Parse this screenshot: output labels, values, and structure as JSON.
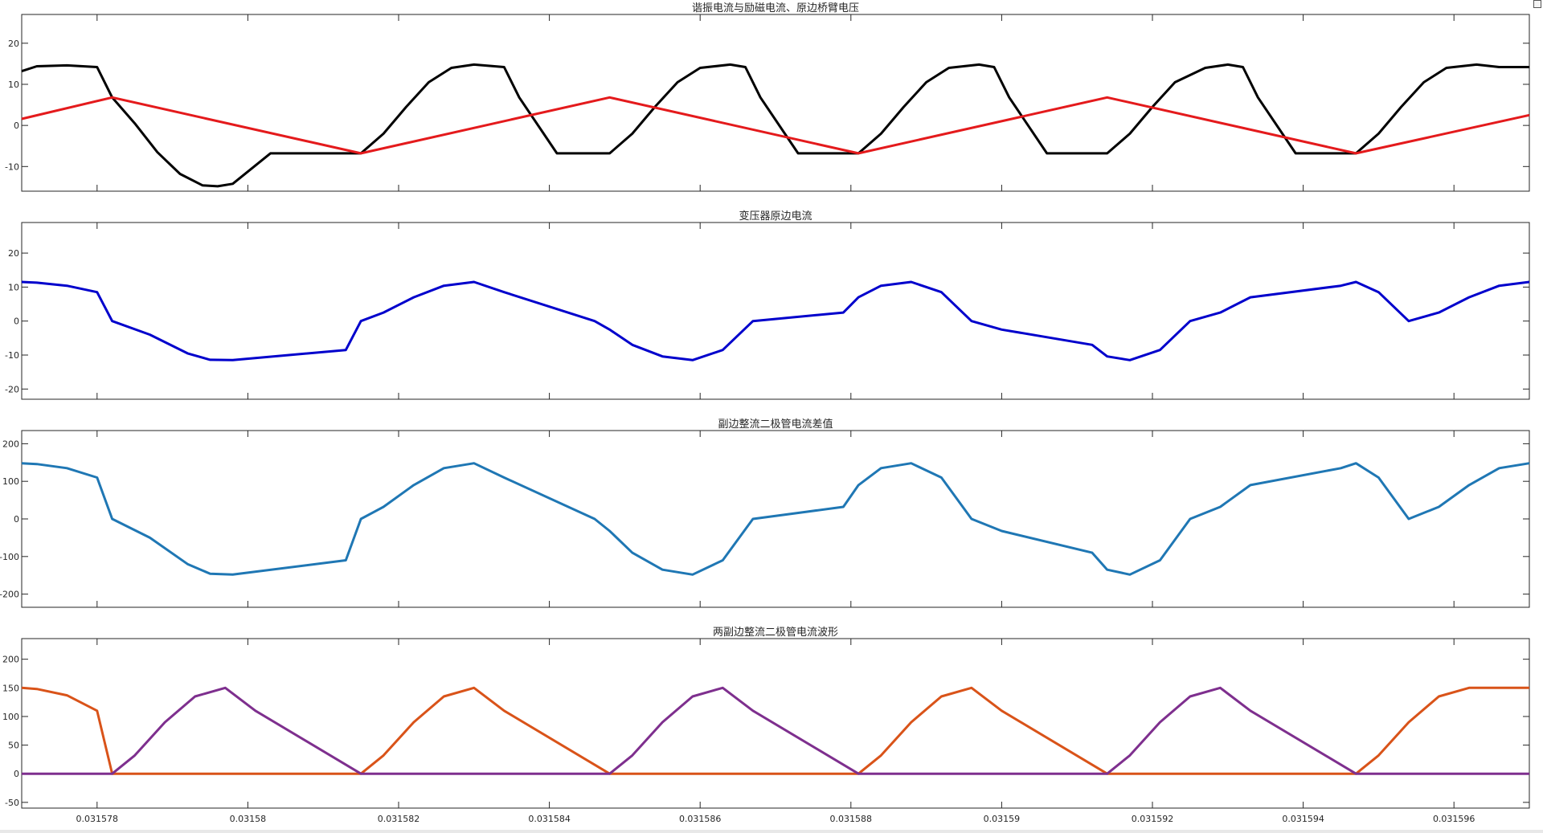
{
  "figure": {
    "x_ticks": [
      0.031578,
      0.03158,
      0.031582,
      0.031584,
      0.031586,
      0.031588,
      0.03159,
      0.031592,
      0.031594,
      0.031596
    ],
    "x_tick_labels": [
      "0.031578",
      "0.03158",
      "0.031582",
      "0.031584",
      "0.031586",
      "0.031588",
      "0.03159",
      "0.031592",
      "0.031594",
      "0.031596"
    ]
  },
  "chart_data": [
    {
      "type": "line",
      "title": "谐振电流与励磁电流、原边桥臂电压",
      "xlabel": "",
      "ylabel": "",
      "xlim": [
        0.031577,
        0.031597
      ],
      "ylim": [
        -16,
        27
      ],
      "y_ticks": [
        -10,
        0,
        10,
        20
      ],
      "y_tick_labels": [
        "-10",
        "0",
        "10",
        "20"
      ],
      "grid": false,
      "series": [
        {
          "color": "#000000",
          "x": [
            0.031577,
            0.0315772,
            0.0315776,
            0.031578,
            0.0315782,
            0.0315785,
            0.0315788,
            0.0315791,
            0.0315794,
            0.0315796,
            0.0315798,
            0.0315803,
            0.0315815,
            0.0315818,
            0.0315821,
            0.0315824,
            0.0315827,
            0.031583,
            0.0315834,
            0.0315836,
            0.0315841,
            0.0315848,
            0.0315851,
            0.0315854,
            0.0315857,
            0.031586,
            0.0315864,
            0.0315866,
            0.0315868,
            0.0315873,
            0.0315881,
            0.0315884,
            0.0315887,
            0.031589,
            0.0315893,
            0.0315897,
            0.0315899,
            0.0315901,
            0.0315906,
            0.0315914,
            0.0315917,
            0.031592,
            0.0315923,
            0.0315927,
            0.031593,
            0.0315932,
            0.0315934,
            0.0315939,
            0.0315947,
            0.031595,
            0.0315953,
            0.0315956,
            0.0315959,
            0.0315963,
            0.0315966,
            0.031597
          ],
          "y": [
            13.2,
            14.4,
            14.6,
            14.2,
            6.8,
            0.5,
            -6.5,
            -11.8,
            -14.6,
            -14.8,
            -14.2,
            -6.8,
            -6.8,
            -2.0,
            4.5,
            10.5,
            14.0,
            14.8,
            14.2,
            6.8,
            -6.8,
            -6.8,
            -2.0,
            4.5,
            10.5,
            14.0,
            14.8,
            14.2,
            6.8,
            -6.8,
            -6.8,
            -2.0,
            4.5,
            10.5,
            14.0,
            14.8,
            14.2,
            6.8,
            -6.8,
            -6.8,
            -2.0,
            4.5,
            10.5,
            14.0,
            14.8,
            14.2,
            6.8,
            -6.8,
            -6.8,
            -2.0,
            4.5,
            10.5,
            14.0,
            14.8,
            14.2,
            14.2
          ]
        },
        {
          "color": "#e41a1c",
          "x": [
            0.031577,
            0.0315782,
            0.0315815,
            0.0315848,
            0.0315881,
            0.0315914,
            0.0315947,
            0.031597
          ],
          "y": [
            1.6,
            6.8,
            -6.8,
            6.8,
            -6.8,
            6.8,
            -6.8,
            2.5
          ]
        }
      ]
    },
    {
      "type": "line",
      "title": "变压器原边电流",
      "xlabel": "",
      "ylabel": "",
      "xlim": [
        0.031577,
        0.031597
      ],
      "ylim": [
        -23,
        29
      ],
      "y_ticks": [
        -20,
        -10,
        0,
        10,
        20
      ],
      "y_tick_labels": [
        "-20",
        "-10",
        "0",
        "10",
        "20"
      ],
      "grid": false,
      "series": [
        {
          "color": "#0000cc",
          "x": [
            0.031577,
            0.0315772,
            0.0315776,
            0.031578,
            0.0315782,
            0.0315787,
            0.0315792,
            0.0315795,
            0.0315798,
            0.0315813,
            0.0315815,
            0.0315818,
            0.0315822,
            0.0315826,
            0.031583,
            0.0315834,
            0.0315846,
            0.0315848,
            0.0315851,
            0.0315855,
            0.0315859,
            0.0315863,
            0.0315867,
            0.0315879,
            0.0315881,
            0.0315884,
            0.0315888,
            0.0315892,
            0.0315896,
            0.03159,
            0.0315912,
            0.0315914,
            0.0315917,
            0.0315921,
            0.0315925,
            0.0315929,
            0.0315933,
            0.0315945,
            0.0315947,
            0.031595,
            0.0315954,
            0.0315958,
            0.0315962,
            0.0315966,
            0.031597
          ],
          "y": [
            11.5,
            11.3,
            10.4,
            8.5,
            0.0,
            -4.0,
            -9.5,
            -11.4,
            -11.5,
            -8.5,
            0.0,
            2.5,
            7.0,
            10.4,
            11.5,
            8.5,
            0.0,
            -2.5,
            -7.0,
            -10.4,
            -11.5,
            -8.5,
            0.0,
            2.5,
            7.0,
            10.4,
            11.5,
            8.5,
            0.0,
            -2.5,
            -7.0,
            -10.4,
            -11.5,
            -8.5,
            0.0,
            2.5,
            7.0,
            10.4,
            11.5,
            8.5,
            0.0,
            2.5,
            7.0,
            10.4,
            11.5
          ]
        }
      ]
    },
    {
      "type": "line",
      "title": "副边整流二极管电流差值",
      "xlabel": "",
      "ylabel": "",
      "xlim": [
        0.031577,
        0.031597
      ],
      "ylim": [
        -235,
        235
      ],
      "y_ticks": [
        -200,
        -100,
        0,
        100,
        200
      ],
      "y_tick_labels": [
        "-200",
        "-100",
        "0",
        "100",
        "200"
      ],
      "grid": false,
      "series": [
        {
          "color": "#1f77b4",
          "x": [
            0.031577,
            0.0315772,
            0.0315776,
            0.031578,
            0.0315782,
            0.0315787,
            0.0315792,
            0.0315795,
            0.0315798,
            0.0315813,
            0.0315815,
            0.0315818,
            0.0315822,
            0.0315826,
            0.031583,
            0.0315834,
            0.0315846,
            0.0315848,
            0.0315851,
            0.0315855,
            0.0315859,
            0.0315863,
            0.0315867,
            0.0315879,
            0.0315881,
            0.0315884,
            0.0315888,
            0.0315892,
            0.0315896,
            0.03159,
            0.0315912,
            0.0315914,
            0.0315917,
            0.0315921,
            0.0315925,
            0.0315929,
            0.0315933,
            0.0315945,
            0.0315947,
            0.031595,
            0.0315954,
            0.0315958,
            0.0315962,
            0.0315966,
            0.031597
          ],
          "y": [
            148,
            146,
            135,
            110,
            0,
            -50,
            -120,
            -146,
            -148,
            -110,
            0,
            32,
            90,
            135,
            148,
            110,
            0,
            -32,
            -90,
            -135,
            -148,
            -110,
            0,
            32,
            90,
            135,
            148,
            110,
            0,
            -32,
            -90,
            -135,
            -148,
            -110,
            0,
            32,
            90,
            135,
            148,
            110,
            0,
            32,
            90,
            135,
            148
          ]
        }
      ]
    },
    {
      "type": "line",
      "title": "两副边整流二极管电流波形",
      "xlabel": "",
      "ylabel": "",
      "xlim": [
        0.031577,
        0.031597
      ],
      "ylim": [
        -60,
        236
      ],
      "y_ticks": [
        -50,
        0,
        50,
        100,
        150,
        200
      ],
      "y_tick_labels": [
        "-50",
        "0",
        "50",
        "100",
        "150",
        "200"
      ],
      "grid": false,
      "series": [
        {
          "color": "#d95319",
          "x": [
            0.031577,
            0.0315772,
            0.0315776,
            0.031578,
            0.0315782,
            0.0315815,
            0.0315818,
            0.0315822,
            0.0315826,
            0.031583,
            0.0315834,
            0.0315848,
            0.0315881,
            0.0315884,
            0.0315888,
            0.0315892,
            0.0315896,
            0.03159,
            0.0315914,
            0.0315947,
            0.031595,
            0.0315954,
            0.0315958,
            0.0315962,
            0.0315966,
            0.031597
          ],
          "y": [
            150,
            148,
            137,
            110,
            0,
            0,
            32,
            90,
            135,
            150,
            110,
            0,
            0,
            32,
            90,
            135,
            150,
            110,
            0,
            0,
            32,
            90,
            135,
            150,
            150,
            150
          ]
        },
        {
          "color": "#7e2f8e",
          "x": [
            0.031577,
            0.0315782,
            0.0315785,
            0.0315789,
            0.0315793,
            0.0315797,
            0.0315801,
            0.0315815,
            0.0315848,
            0.0315851,
            0.0315855,
            0.0315859,
            0.0315863,
            0.0315867,
            0.0315881,
            0.0315914,
            0.0315917,
            0.0315921,
            0.0315925,
            0.0315929,
            0.0315933,
            0.0315947,
            0.031597
          ],
          "y": [
            0,
            0,
            32,
            90,
            135,
            150,
            110,
            0,
            0,
            32,
            90,
            135,
            150,
            110,
            0,
            0,
            32,
            90,
            135,
            150,
            110,
            0,
            0
          ]
        }
      ]
    }
  ]
}
